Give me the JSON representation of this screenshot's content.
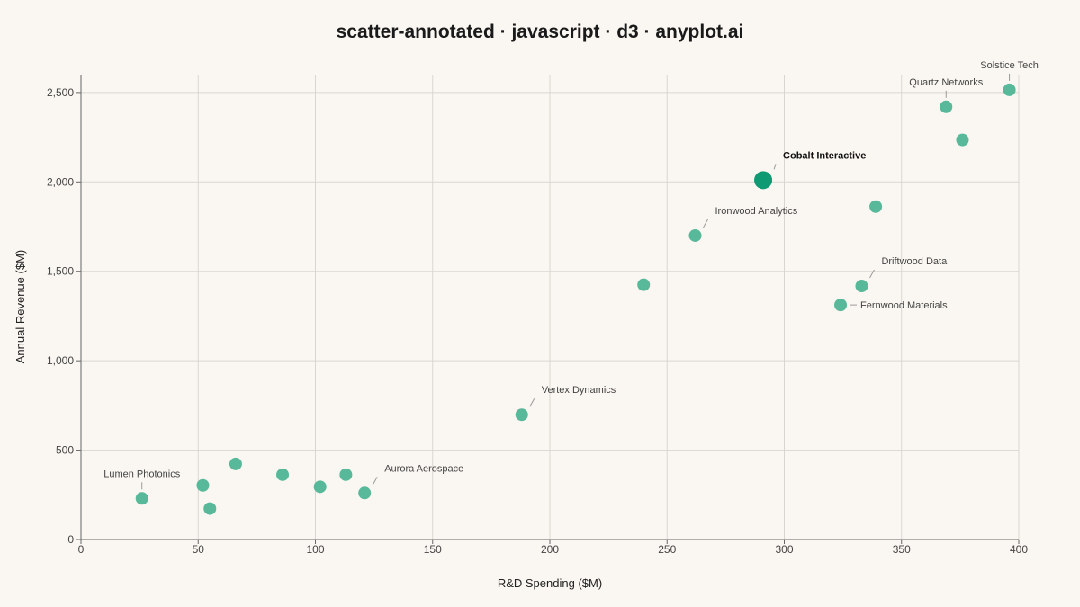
{
  "chart_data": {
    "type": "scatter",
    "title": "scatter-annotated · javascript · d3 · anyplot.ai",
    "xlabel": "R&D Spending ($M)",
    "ylabel": "Annual Revenue ($M)",
    "xlim": [
      0,
      400
    ],
    "ylim": [
      0,
      2600
    ],
    "xticks": [
      0,
      50,
      100,
      150,
      200,
      250,
      300,
      350,
      400
    ],
    "yticks": [
      0,
      500,
      1000,
      1500,
      2000,
      2500
    ],
    "grid": true,
    "point_color": "#4fb595",
    "highlight_color": "#0e9a72",
    "points": [
      {
        "x": 26,
        "y": 230,
        "label": "Lumen Photonics"
      },
      {
        "x": 52,
        "y": 303
      },
      {
        "x": 55,
        "y": 173
      },
      {
        "x": 66,
        "y": 423
      },
      {
        "x": 86,
        "y": 363
      },
      {
        "x": 102,
        "y": 295
      },
      {
        "x": 113,
        "y": 363
      },
      {
        "x": 121,
        "y": 260,
        "label": "Aurora Aerospace"
      },
      {
        "x": 188,
        "y": 698,
        "label": "Vertex Dynamics"
      },
      {
        "x": 240,
        "y": 1425
      },
      {
        "x": 262,
        "y": 1700,
        "label": "Ironwood Analytics"
      },
      {
        "x": 291,
        "y": 2010,
        "label": "Cobalt Interactive",
        "highlight": true
      },
      {
        "x": 324,
        "y": 1312,
        "label": "Fernwood Materials"
      },
      {
        "x": 333,
        "y": 1418,
        "label": "Driftwood Data"
      },
      {
        "x": 339,
        "y": 1862
      },
      {
        "x": 369,
        "y": 2420,
        "label": "Quartz Networks"
      },
      {
        "x": 376,
        "y": 2235
      },
      {
        "x": 396,
        "y": 2515,
        "label": "Solstice Tech"
      }
    ]
  }
}
